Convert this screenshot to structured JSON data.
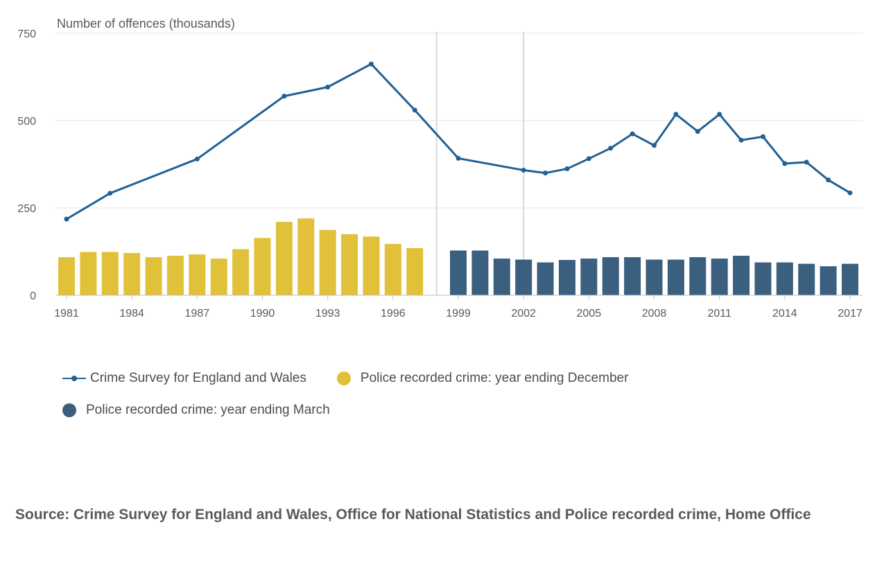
{
  "chart_data": {
    "type": "bar+line",
    "ylabel": "Number of offences (thousands)",
    "ylim": [
      0,
      750
    ],
    "yticks": [
      0,
      250,
      500,
      750
    ],
    "xticks": [
      "1981",
      "1984",
      "1987",
      "1990",
      "1993",
      "1996",
      "1999",
      "2002",
      "2005",
      "2008",
      "2011",
      "2014",
      "2017"
    ],
    "xrange": [
      1981,
      2017
    ],
    "grid": true,
    "legend_position": "bottom",
    "series": [
      {
        "name": "Crime Survey for England and Wales",
        "type": "line",
        "color": "#206095",
        "x": [
          1981,
          1983,
          1987,
          1991,
          1993,
          1995,
          1997,
          1999,
          2002,
          2003,
          2004,
          2005,
          2006,
          2007,
          2008,
          2009,
          2010,
          2011,
          2012,
          2013,
          2014,
          2015,
          2016,
          2017
        ],
        "values": [
          218,
          292,
          390,
          570,
          596,
          662,
          530,
          392,
          358,
          350,
          362,
          391,
          421,
          462,
          429,
          518,
          469,
          518,
          444,
          454,
          377,
          381,
          330,
          293
        ]
      },
      {
        "name": "Police recorded crime: year ending December",
        "type": "bar",
        "color": "#e2c13a",
        "x": [
          1981,
          1982,
          1983,
          1984,
          1985,
          1986,
          1987,
          1988,
          1989,
          1990,
          1991,
          1992,
          1993,
          1994,
          1995,
          1996,
          1997
        ],
        "values": [
          109,
          124,
          124,
          121,
          109,
          113,
          117,
          105,
          132,
          164,
          210,
          220,
          187,
          175,
          168,
          147,
          135
        ]
      },
      {
        "name": "Police recorded crime: year ending March",
        "type": "bar",
        "color": "#3b5f7f",
        "x": [
          1999,
          2000,
          2001,
          2002,
          2003,
          2004,
          2005,
          2006,
          2007,
          2008,
          2009,
          2010,
          2011,
          2012,
          2013,
          2014,
          2015,
          2016,
          2017
        ],
        "values": [
          128,
          128,
          105,
          102,
          94,
          101,
          105,
          109,
          109,
          102,
          102,
          109,
          105,
          113,
          94,
          94,
          90,
          83,
          90
        ]
      }
    ],
    "dividers": [
      1998,
      2002
    ],
    "colors": {
      "grid": "#e6e6e6",
      "divider": "#d9d9d9",
      "axis": "#bdbdbd"
    }
  },
  "legend": {
    "line_label": "Crime Survey for England and Wales",
    "dec_label": "Police recorded crime: year ending December",
    "mar_label": "Police recorded crime: year ending March"
  },
  "source": "Source: Crime Survey for England and Wales, Office for National Statistics and Police recorded crime, Home Office"
}
